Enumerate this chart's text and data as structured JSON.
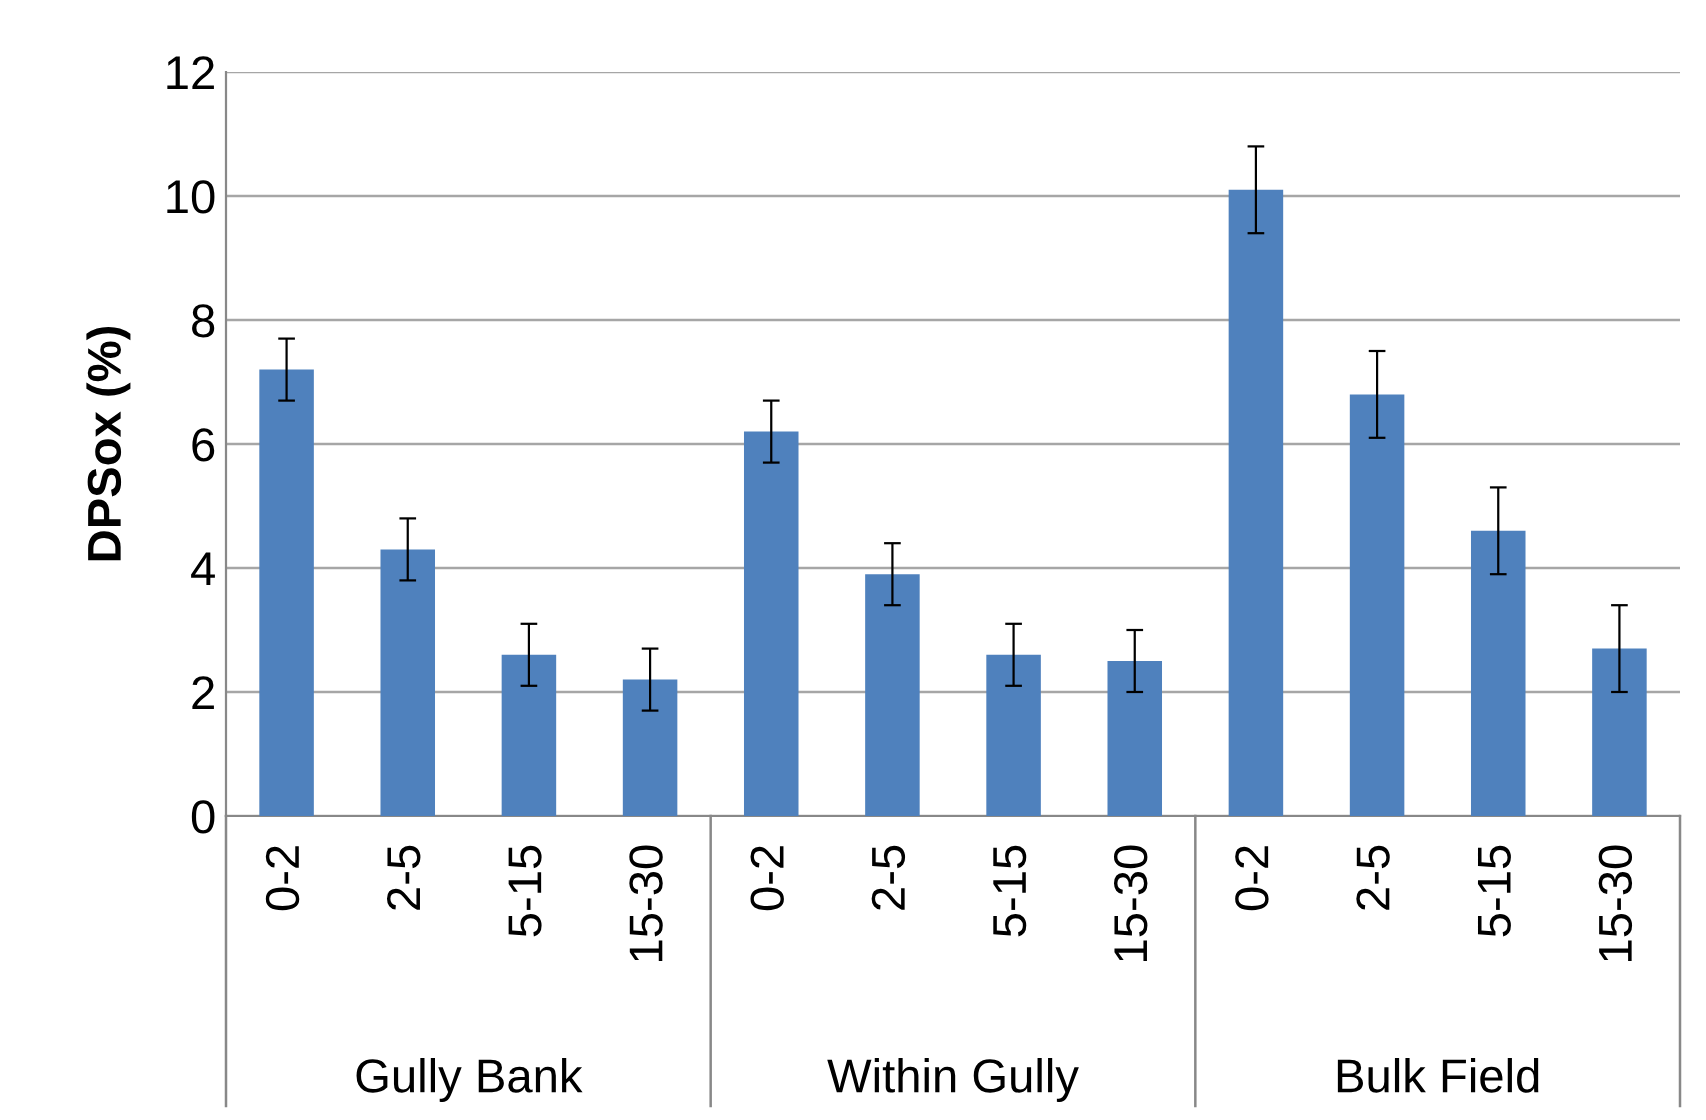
{
  "chart_data": {
    "type": "bar",
    "ylabel": "DPSox (%)",
    "categories": [
      "0-2",
      "2-5",
      "5-15",
      "15-30",
      "0-2",
      "2-5",
      "5-15",
      "15-30",
      "0-2",
      "2-5",
      "5-15",
      "15-30"
    ],
    "values": [
      7.2,
      4.3,
      2.6,
      2.2,
      6.2,
      3.9,
      2.6,
      2.5,
      10.1,
      6.8,
      4.6,
      2.7
    ],
    "errors": [
      0.5,
      0.5,
      0.5,
      0.5,
      0.5,
      0.5,
      0.5,
      0.5,
      0.7,
      0.7,
      0.7,
      0.7
    ],
    "color": "#4f81bd",
    "ylim": [
      0,
      12
    ],
    "yticks": [
      0,
      2,
      4,
      6,
      8,
      10,
      12
    ],
    "grid": "y",
    "annotations": [
      "Gully Bank",
      "Within Gully",
      "Bulk Field"
    ]
  }
}
